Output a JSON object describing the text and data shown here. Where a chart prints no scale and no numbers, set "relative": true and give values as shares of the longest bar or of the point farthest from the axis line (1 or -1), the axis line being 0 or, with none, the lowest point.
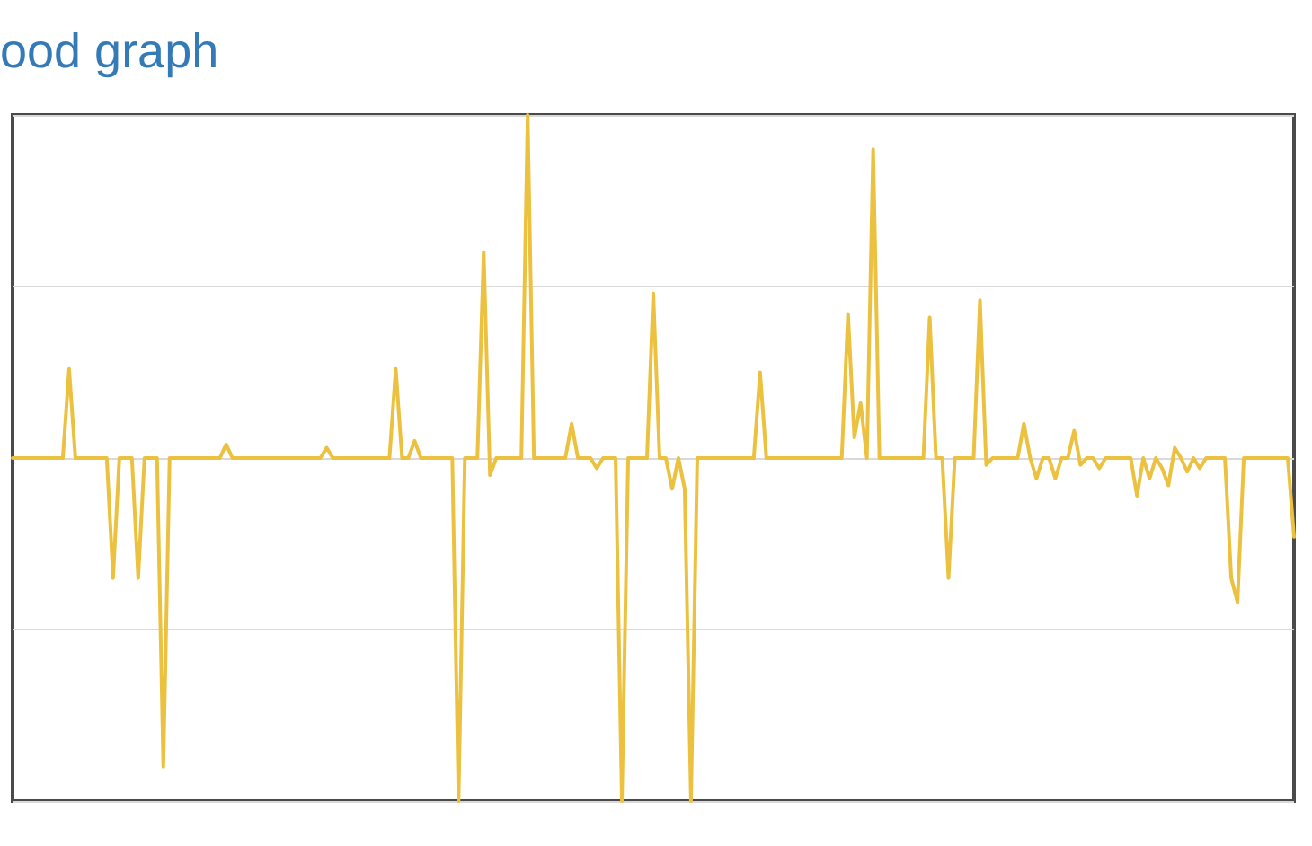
{
  "chart_data": {
    "type": "line",
    "title": "ood graph",
    "relative": true,
    "grid": "y",
    "marker": "none",
    "line_style": "solid",
    "categories": [
      null,
      null,
      null,
      null,
      null,
      null,
      null,
      null,
      null,
      null,
      null,
      null,
      null,
      null,
      null,
      null,
      null,
      null,
      null,
      null,
      null,
      null,
      null,
      null,
      null,
      null,
      null,
      null,
      null,
      null,
      null,
      null,
      null,
      null,
      null,
      null,
      null,
      null,
      null,
      null,
      null,
      null,
      null,
      null,
      null,
      null,
      null,
      null,
      null,
      null,
      null,
      null,
      null,
      null,
      null,
      null,
      null,
      null,
      null,
      null,
      null,
      null,
      null,
      null,
      null,
      null,
      null,
      null,
      null,
      null,
      null,
      null,
      null,
      null,
      null,
      null,
      null,
      null,
      null,
      null,
      null,
      null,
      null,
      null,
      null,
      null,
      null,
      null,
      null,
      null,
      null,
      null,
      null,
      null,
      null,
      null,
      null,
      null,
      null,
      null,
      null,
      null,
      null,
      null,
      null,
      null,
      null,
      null,
      null,
      null,
      null,
      null,
      null,
      null,
      null,
      null,
      null,
      null,
      null,
      null,
      null,
      null,
      null,
      null,
      null,
      null,
      null,
      null,
      null,
      null,
      null,
      null,
      null,
      null,
      null,
      null,
      null,
      null,
      null,
      null,
      null,
      null,
      null,
      null,
      null,
      null,
      null,
      null,
      null,
      null,
      null,
      null,
      null,
      null,
      null,
      null,
      null,
      null,
      null,
      null,
      null,
      null,
      null,
      null,
      null,
      null,
      null,
      null,
      null,
      null,
      null,
      null,
      null,
      null,
      null,
      null,
      null,
      null,
      null,
      null,
      null,
      null,
      null,
      null,
      null,
      null,
      null,
      null,
      null,
      null,
      null,
      null,
      null,
      null,
      null,
      null,
      null,
      null,
      null,
      null,
      null,
      null,
      null,
      null,
      null
    ],
    "series": [
      {
        "color": "#ecc13f",
        "values": [
          0,
          0,
          0,
          0,
          0,
          0,
          0,
          0,
          0,
          0.26,
          0,
          0,
          0,
          0,
          0,
          0,
          -0.35,
          0,
          0,
          0,
          -0.35,
          0,
          0,
          0,
          -0.9,
          0,
          0,
          0,
          0,
          0,
          0,
          0,
          0,
          0,
          0.04,
          0,
          0,
          0,
          0,
          0,
          0,
          0,
          0,
          0,
          0,
          0,
          0,
          0,
          0,
          0,
          0.03,
          0,
          0,
          0,
          0,
          0,
          0,
          0,
          0,
          0,
          0,
          0.26,
          0,
          0,
          0.05,
          0,
          0,
          0,
          0,
          0,
          0,
          -1,
          0,
          0,
          0,
          0.6,
          -0.05,
          0,
          0,
          0,
          0,
          0,
          1,
          0,
          0,
          0,
          0,
          0,
          0,
          0.1,
          0,
          0,
          0,
          -0.03,
          0,
          0,
          0,
          -1,
          0,
          0,
          0,
          0,
          0.48,
          0,
          0,
          -0.09,
          0,
          -0.09,
          -1,
          0,
          0,
          0,
          0,
          0,
          0,
          0,
          0,
          0,
          0,
          0.25,
          0,
          0,
          0,
          0,
          0,
          0,
          0,
          0,
          0,
          0,
          0,
          0,
          0,
          0.42,
          0.06,
          0.16,
          0,
          0.9,
          0,
          0,
          0,
          0,
          0,
          0,
          0,
          0,
          0.41,
          0,
          0,
          -0.35,
          0,
          0,
          0,
          0,
          0.46,
          -0.02,
          0,
          0,
          0,
          0,
          0,
          0.1,
          0,
          -0.06,
          0,
          0,
          -0.06,
          0,
          0,
          0.08,
          -0.02,
          0,
          0,
          -0.03,
          0,
          0,
          0,
          0,
          0,
          -0.11,
          0,
          -0.06,
          0,
          -0.03,
          -0.08,
          0.03,
          0,
          -0.04,
          0,
          -0.03,
          0,
          0,
          0,
          0,
          -0.35,
          -0.42,
          0,
          0,
          0,
          0,
          0,
          0,
          0,
          0,
          -0.23
        ]
      }
    ]
  }
}
